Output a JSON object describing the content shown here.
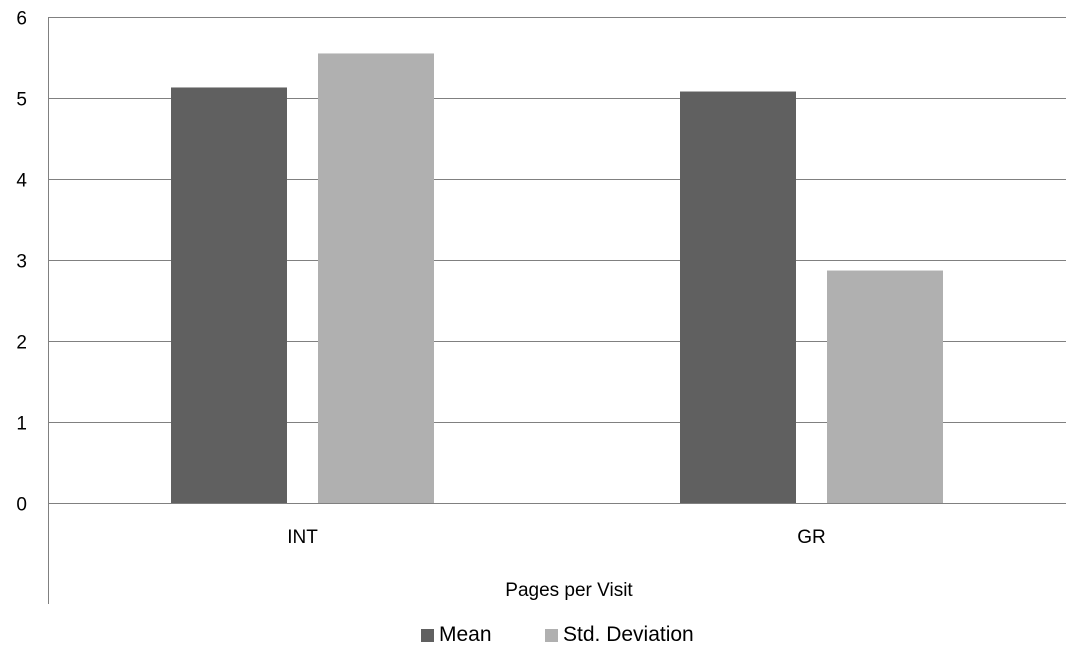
{
  "chart_data": {
    "type": "bar",
    "categories": [
      "INT",
      "GR"
    ],
    "series": [
      {
        "name": "Mean",
        "values": [
          5.13,
          5.08
        ],
        "color": "#606060"
      },
      {
        "name": "Std. Deviation",
        "values": [
          5.55,
          2.87
        ],
        "color": "#b0b0b0"
      }
    ],
    "xlabel": "Pages per Visit",
    "ylabel": "",
    "ylim": [
      0,
      6
    ],
    "yticks": [
      0,
      1,
      2,
      3,
      4,
      5,
      6
    ],
    "grid": true,
    "legend_position": "bottom-center",
    "gridline_color": "#808080",
    "axis_color": "#808080"
  }
}
